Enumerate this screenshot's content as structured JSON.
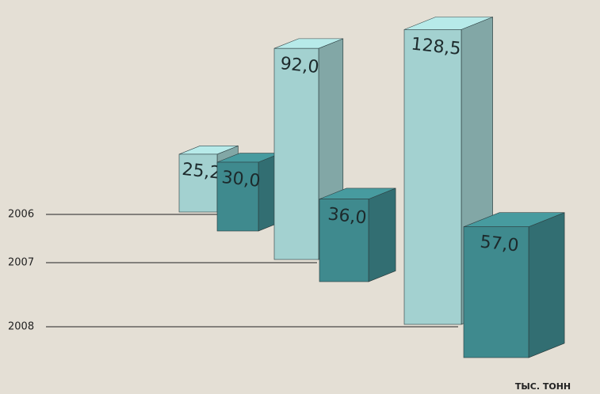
{
  "chart_data": {
    "type": "bar3d",
    "categories": [
      "2006",
      "2007",
      "2008"
    ],
    "series": [
      {
        "color": "#a3d1d0",
        "values": [
          25.2,
          92.0,
          128.5
        ],
        "value_labels": [
          "25,2",
          "92,0",
          "128,5"
        ]
      },
      {
        "color": "#3f8a8e",
        "values": [
          30.0,
          36.0,
          57.0
        ],
        "value_labels": [
          "30,0",
          "36,0",
          "57,0"
        ]
      }
    ],
    "unit": "ТЫС. ТОНН"
  }
}
